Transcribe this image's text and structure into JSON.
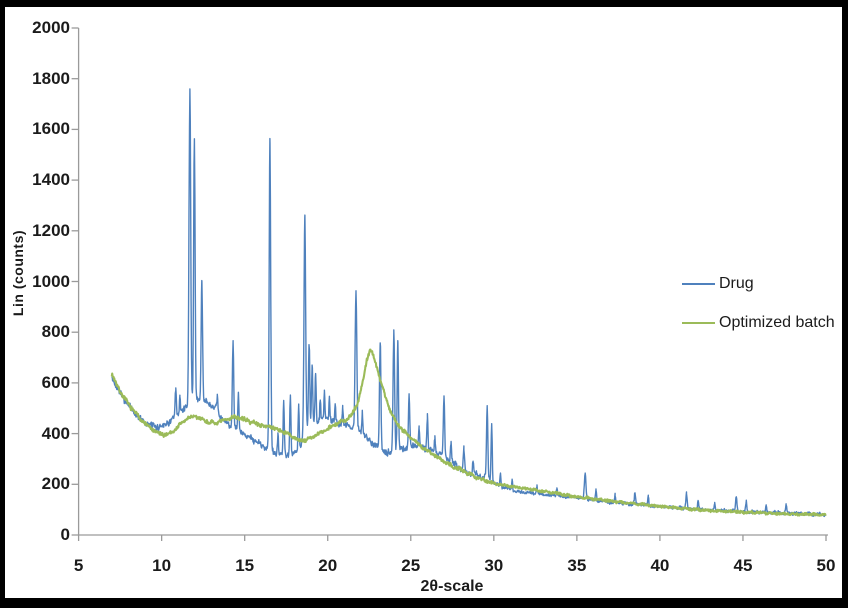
{
  "chart_data": {
    "type": "line",
    "title": "",
    "xlabel": "2θ-scale",
    "ylabel": "Lin (counts)",
    "xlim": [
      5,
      50
    ],
    "ylim": [
      0,
      2000
    ],
    "xticks": [
      5,
      10,
      15,
      20,
      25,
      30,
      35,
      40,
      45,
      50
    ],
    "yticks": [
      0,
      200,
      400,
      600,
      800,
      1000,
      1200,
      1400,
      1600,
      1800,
      2000
    ],
    "grid": false,
    "axis_color": "#9a9a9a",
    "legend": {
      "position": "right",
      "entries": [
        {
          "label": "Drug",
          "color": "#4F81BD"
        },
        {
          "label": "Optimized batch",
          "color": "#9BBB59"
        }
      ]
    },
    "x_data_range": [
      7,
      50
    ],
    "series": [
      {
        "name": "Drug",
        "color": "#4F81BD",
        "noise": [
          15,
          8
        ],
        "baseline": [
          [
            7,
            620
          ],
          [
            7.3,
            585
          ],
          [
            7.6,
            550
          ],
          [
            8,
            510
          ],
          [
            8.4,
            480
          ],
          [
            8.8,
            455
          ],
          [
            9.2,
            437
          ],
          [
            9.6,
            425
          ],
          [
            10,
            430
          ],
          [
            10.4,
            445
          ],
          [
            10.8,
            462
          ],
          [
            11.2,
            490
          ],
          [
            11.6,
            510
          ],
          [
            12,
            535
          ],
          [
            12.4,
            535
          ],
          [
            12.8,
            520
          ],
          [
            13.2,
            500
          ],
          [
            13.6,
            462
          ],
          [
            14,
            435
          ],
          [
            14.4,
            420
          ],
          [
            14.8,
            405
          ],
          [
            15.2,
            390
          ],
          [
            15.6,
            372
          ],
          [
            16,
            355
          ],
          [
            16.4,
            340
          ],
          [
            16.8,
            325
          ],
          [
            17.2,
            316
          ],
          [
            17.6,
            314
          ],
          [
            18,
            322
          ],
          [
            18.4,
            355
          ],
          [
            18.8,
            425
          ],
          [
            19.2,
            442
          ],
          [
            19.6,
            452
          ],
          [
            20,
            452
          ],
          [
            20.4,
            447
          ],
          [
            20.8,
            440
          ],
          [
            21.2,
            432
          ],
          [
            21.6,
            425
          ],
          [
            22,
            405
          ],
          [
            22.4,
            382
          ],
          [
            22.8,
            358
          ],
          [
            23.2,
            336
          ],
          [
            23.6,
            320
          ],
          [
            24,
            330
          ],
          [
            24.4,
            340
          ],
          [
            24.8,
            346
          ],
          [
            25.2,
            351
          ],
          [
            25.6,
            348
          ],
          [
            26,
            338
          ],
          [
            26.5,
            328
          ],
          [
            27,
            310
          ],
          [
            27.5,
            287
          ],
          [
            28,
            262
          ],
          [
            28.5,
            247
          ],
          [
            29,
            236
          ],
          [
            29.5,
            227
          ],
          [
            30,
            205
          ],
          [
            30.5,
            190
          ],
          [
            31,
            179
          ],
          [
            31.5,
            171
          ],
          [
            32,
            167
          ],
          [
            32.5,
            163
          ],
          [
            33,
            160
          ],
          [
            33.5,
            157
          ],
          [
            34,
            154
          ],
          [
            34.5,
            151
          ],
          [
            35,
            148
          ],
          [
            35.5,
            144
          ],
          [
            36,
            138
          ],
          [
            36.5,
            133
          ],
          [
            37,
            130
          ],
          [
            37.5,
            127
          ],
          [
            38,
            124
          ],
          [
            38.5,
            121
          ],
          [
            39,
            119
          ],
          [
            39.5,
            115
          ],
          [
            40,
            112
          ],
          [
            41,
            107
          ],
          [
            42,
            102
          ],
          [
            43,
            99
          ],
          [
            44,
            96
          ],
          [
            45,
            93
          ],
          [
            46,
            90
          ],
          [
            47,
            88
          ],
          [
            48,
            86
          ],
          [
            49,
            83
          ],
          [
            50,
            80
          ]
        ],
        "peaks": [
          [
            10.85,
            105,
            0.035
          ],
          [
            11.1,
            65,
            0.03
          ],
          [
            11.7,
            1255,
            0.05
          ],
          [
            11.97,
            1030,
            0.042
          ],
          [
            12.42,
            470,
            0.042
          ],
          [
            13.35,
            60,
            0.03
          ],
          [
            14.3,
            340,
            0.04
          ],
          [
            14.62,
            140,
            0.032
          ],
          [
            16.52,
            1225,
            0.045
          ],
          [
            17.0,
            80,
            0.03
          ],
          [
            17.35,
            215,
            0.035
          ],
          [
            17.75,
            230,
            0.035
          ],
          [
            18.25,
            165,
            0.033
          ],
          [
            18.62,
            860,
            0.05
          ],
          [
            18.88,
            330,
            0.038
          ],
          [
            19.06,
            230,
            0.035
          ],
          [
            19.27,
            195,
            0.035
          ],
          [
            19.55,
            90,
            0.03
          ],
          [
            19.8,
            105,
            0.033
          ],
          [
            20.1,
            100,
            0.033
          ],
          [
            20.45,
            62,
            0.03
          ],
          [
            20.9,
            68,
            0.03
          ],
          [
            21.7,
            535,
            0.05
          ],
          [
            22.08,
            85,
            0.033
          ],
          [
            23.16,
            420,
            0.042
          ],
          [
            23.98,
            475,
            0.045
          ],
          [
            24.22,
            435,
            0.038
          ],
          [
            24.9,
            205,
            0.038
          ],
          [
            25.5,
            80,
            0.033
          ],
          [
            26.0,
            130,
            0.036
          ],
          [
            26.45,
            60,
            0.03
          ],
          [
            27.0,
            235,
            0.04
          ],
          [
            27.42,
            75,
            0.03
          ],
          [
            28.2,
            80,
            0.035
          ],
          [
            28.75,
            55,
            0.03
          ],
          [
            29.6,
            285,
            0.04
          ],
          [
            29.87,
            225,
            0.035
          ],
          [
            30.4,
            50,
            0.03
          ],
          [
            31.1,
            42,
            0.03
          ],
          [
            32.6,
            30,
            0.03
          ],
          [
            33.8,
            28,
            0.03
          ],
          [
            35.5,
            102,
            0.045
          ],
          [
            36.15,
            40,
            0.03
          ],
          [
            37.3,
            28,
            0.03
          ],
          [
            38.5,
            45,
            0.04
          ],
          [
            39.3,
            35,
            0.03
          ],
          [
            41.6,
            62,
            0.04
          ],
          [
            42.3,
            40,
            0.03
          ],
          [
            43.3,
            30,
            0.03
          ],
          [
            44.6,
            58,
            0.04
          ],
          [
            45.2,
            42,
            0.032
          ],
          [
            46.4,
            28,
            0.03
          ],
          [
            47.6,
            30,
            0.03
          ]
        ]
      },
      {
        "name": "Optimized batch",
        "color": "#9BBB59",
        "noise": [
          9,
          6
        ],
        "baseline": [
          [
            7,
            635
          ],
          [
            7.3,
            592
          ],
          [
            7.6,
            556
          ],
          [
            8,
            516
          ],
          [
            8.4,
            483
          ],
          [
            8.8,
            453
          ],
          [
            9.2,
            428
          ],
          [
            9.6,
            408
          ],
          [
            10,
            396
          ],
          [
            10.4,
            398
          ],
          [
            10.8,
            415
          ],
          [
            11.2,
            442
          ],
          [
            11.6,
            462
          ],
          [
            12,
            468
          ],
          [
            12.4,
            458
          ],
          [
            12.8,
            446
          ],
          [
            13.2,
            440
          ],
          [
            13.6,
            448
          ],
          [
            14,
            458
          ],
          [
            14.4,
            466
          ],
          [
            14.8,
            460
          ],
          [
            15.2,
            450
          ],
          [
            15.6,
            442
          ],
          [
            16,
            434
          ],
          [
            16.4,
            428
          ],
          [
            17,
            416
          ],
          [
            17.4,
            405
          ],
          [
            17.8,
            390
          ],
          [
            18.2,
            375
          ],
          [
            18.6,
            372
          ],
          [
            19,
            385
          ],
          [
            19.4,
            396
          ],
          [
            19.8,
            412
          ],
          [
            20.2,
            428
          ],
          [
            20.6,
            440
          ],
          [
            21,
            452
          ],
          [
            21.4,
            470
          ],
          [
            21.8,
            520
          ],
          [
            22.1,
            600
          ],
          [
            22.35,
            690
          ],
          [
            22.55,
            735
          ],
          [
            22.75,
            705
          ],
          [
            23,
            650
          ],
          [
            23.25,
            595
          ],
          [
            23.5,
            540
          ],
          [
            23.8,
            485
          ],
          [
            24.1,
            448
          ],
          [
            24.5,
            415
          ],
          [
            25,
            385
          ],
          [
            25.5,
            355
          ],
          [
            26,
            332
          ],
          [
            26.5,
            312
          ],
          [
            27,
            292
          ],
          [
            27.5,
            272
          ],
          [
            28,
            257
          ],
          [
            28.5,
            242
          ],
          [
            29,
            228
          ],
          [
            29.5,
            215
          ],
          [
            30,
            205
          ],
          [
            30.5,
            198
          ],
          [
            31,
            192
          ],
          [
            31.5,
            187
          ],
          [
            32,
            182
          ],
          [
            32.5,
            177
          ],
          [
            33,
            172
          ],
          [
            33.5,
            167
          ],
          [
            34,
            162
          ],
          [
            34.5,
            156
          ],
          [
            35,
            151
          ],
          [
            35.5,
            147
          ],
          [
            36,
            143
          ],
          [
            36.5,
            139
          ],
          [
            37,
            135
          ],
          [
            37.5,
            131
          ],
          [
            38,
            127
          ],
          [
            38.5,
            124
          ],
          [
            39,
            120
          ],
          [
            39.5,
            117
          ],
          [
            40,
            113
          ],
          [
            40.5,
            110
          ],
          [
            41,
            107
          ],
          [
            41.5,
            104
          ],
          [
            42,
            101
          ],
          [
            42.5,
            99
          ],
          [
            43,
            97
          ],
          [
            43.5,
            95
          ],
          [
            44,
            93
          ],
          [
            44.5,
            92
          ],
          [
            45,
            90
          ],
          [
            45.5,
            89
          ],
          [
            46,
            88
          ],
          [
            46.5,
            86
          ],
          [
            47,
            85
          ],
          [
            47.5,
            84
          ],
          [
            48,
            83
          ],
          [
            48.5,
            82
          ],
          [
            49,
            81
          ],
          [
            49.5,
            80
          ],
          [
            50,
            79
          ]
        ],
        "peaks": []
      }
    ]
  }
}
